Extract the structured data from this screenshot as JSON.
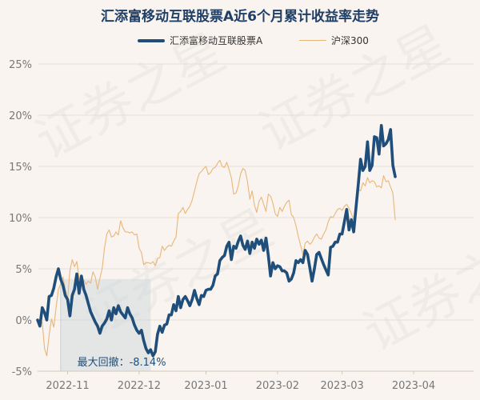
{
  "chart_data": {
    "type": "line",
    "title": "汇添富移动互联股票A近6个月累计收益率走势",
    "ylim": [
      -5,
      25
    ],
    "yticks": [
      -5,
      0,
      5,
      10,
      15,
      20,
      25
    ],
    "ytick_labels": [
      "-5%",
      "0%",
      "5%",
      "10%",
      "15%",
      "20%",
      "25%"
    ],
    "xticks": [
      {
        "label": "2022-11",
        "x": 13
      },
      {
        "label": "2022-12",
        "x": 44
      },
      {
        "label": "2023-01",
        "x": 73
      },
      {
        "label": "2023-02",
        "x": 104
      },
      {
        "label": "2023-03",
        "x": 132
      },
      {
        "label": "2023-04",
        "x": 163
      }
    ],
    "x_range": [
      0,
      189
    ],
    "grid": true,
    "legend_position": "top-center",
    "series": [
      {
        "name": "汇添富移动互联股票A",
        "color": "#1f4e7a",
        "points": [
          [
            0,
            0
          ],
          [
            1,
            -0.6
          ],
          [
            2,
            1.2
          ],
          [
            3,
            0.7
          ],
          [
            4,
            0.0
          ],
          [
            5,
            2.3
          ],
          [
            6,
            2.4
          ],
          [
            7,
            3.1
          ],
          [
            8,
            4.2
          ],
          [
            9,
            5.0
          ],
          [
            10,
            4.0
          ],
          [
            11,
            3.4
          ],
          [
            12,
            2.4
          ],
          [
            13,
            2.0
          ],
          [
            14,
            0.4
          ],
          [
            15,
            2.4
          ],
          [
            16,
            3.0
          ],
          [
            17,
            4.5
          ],
          [
            18,
            2.6
          ],
          [
            19,
            4.3
          ],
          [
            20,
            3.0
          ],
          [
            21,
            2.4
          ],
          [
            22,
            1.6
          ],
          [
            23,
            0.8
          ],
          [
            24,
            0.3
          ],
          [
            25,
            -0.2
          ],
          [
            26,
            -0.6
          ],
          [
            27,
            -1.3
          ],
          [
            28,
            -0.6
          ],
          [
            29,
            -0.3
          ],
          [
            30,
            0.1
          ],
          [
            31,
            0.9
          ],
          [
            32,
            0.0
          ],
          [
            33,
            1.2
          ],
          [
            34,
            0.6
          ],
          [
            35,
            1.4
          ],
          [
            36,
            0.8
          ],
          [
            37,
            0.5
          ],
          [
            38,
            0.2
          ],
          [
            39,
            1.2
          ],
          [
            40,
            0.6
          ],
          [
            41,
            0.2
          ],
          [
            42,
            -0.5
          ],
          [
            43,
            -1.0
          ],
          [
            44,
            -1.3
          ],
          [
            45,
            -1.0
          ],
          [
            46,
            -2.0
          ],
          [
            47,
            -2.8
          ],
          [
            48,
            -3.2
          ],
          [
            49,
            -2.9
          ],
          [
            50,
            -3.5
          ],
          [
            51,
            -3.1
          ],
          [
            52,
            -1.4
          ],
          [
            53,
            -0.6
          ],
          [
            54,
            -1.2
          ],
          [
            55,
            -0.5
          ],
          [
            56,
            -0.4
          ],
          [
            57,
            0.5
          ],
          [
            58,
            0.5
          ],
          [
            59,
            1.5
          ],
          [
            60,
            0.9
          ],
          [
            61,
            2.3
          ],
          [
            62,
            1.2
          ],
          [
            63,
            2.0
          ],
          [
            64,
            2.3
          ],
          [
            65,
            1.9
          ],
          [
            66,
            1.4
          ],
          [
            67,
            2.0
          ],
          [
            68,
            2.9
          ],
          [
            69,
            2.1
          ],
          [
            70,
            1.5
          ],
          [
            71,
            2.4
          ],
          [
            72,
            2.3
          ],
          [
            73,
            2.9
          ],
          [
            74,
            3.0
          ],
          [
            75,
            3.0
          ],
          [
            76,
            3.4
          ],
          [
            77,
            4.3
          ],
          [
            78,
            4.5
          ],
          [
            79,
            5.8
          ],
          [
            80,
            6.1
          ],
          [
            81,
            6.3
          ],
          [
            82,
            7.2
          ],
          [
            83,
            7.6
          ],
          [
            84,
            5.9
          ],
          [
            85,
            7.2
          ],
          [
            86,
            7.0
          ],
          [
            87,
            7.7
          ],
          [
            88,
            8.2
          ],
          [
            89,
            7.3
          ],
          [
            90,
            6.9
          ],
          [
            91,
            7.7
          ],
          [
            92,
            6.5
          ],
          [
            93,
            7.6
          ],
          [
            94,
            7.0
          ],
          [
            95,
            7.9
          ],
          [
            96,
            7.4
          ],
          [
            97,
            7.8
          ],
          [
            98,
            6.8
          ],
          [
            99,
            8.0
          ],
          [
            100,
            6.3
          ],
          [
            101,
            4.3
          ],
          [
            102,
            5.6
          ],
          [
            103,
            5.0
          ],
          [
            104,
            5.3
          ],
          [
            105,
            5.2
          ],
          [
            106,
            4.8
          ],
          [
            107,
            4.8
          ],
          [
            108,
            4.6
          ],
          [
            109,
            3.8
          ],
          [
            110,
            4.0
          ],
          [
            111,
            4.6
          ],
          [
            112,
            5.8
          ],
          [
            113,
            5.6
          ],
          [
            114,
            5.9
          ],
          [
            115,
            5.6
          ],
          [
            116,
            6.8
          ],
          [
            117,
            6.4
          ],
          [
            118,
            5.1
          ],
          [
            119,
            3.8
          ],
          [
            120,
            5.0
          ],
          [
            121,
            6.4
          ],
          [
            122,
            6.6
          ],
          [
            123,
            6.0
          ],
          [
            124,
            5.4
          ],
          [
            125,
            4.9
          ],
          [
            126,
            4.4
          ],
          [
            127,
            7.1
          ],
          [
            128,
            7.2
          ],
          [
            129,
            7.6
          ],
          [
            130,
            7.6
          ],
          [
            131,
            8.4
          ],
          [
            132,
            8.4
          ],
          [
            133,
            9.6
          ],
          [
            134,
            10.8
          ],
          [
            135,
            8.8
          ],
          [
            136,
            9.8
          ],
          [
            137,
            8.6
          ],
          [
            138,
            10.9
          ],
          [
            139,
            13.2
          ],
          [
            140,
            15.7
          ],
          [
            141,
            14.6
          ],
          [
            142,
            15.0
          ],
          [
            143,
            17.4
          ],
          [
            144,
            14.6
          ],
          [
            145,
            15.1
          ],
          [
            146,
            17.9
          ],
          [
            147,
            17.8
          ],
          [
            148,
            16.2
          ],
          [
            149,
            19.0
          ],
          [
            150,
            17.0
          ],
          [
            151,
            17.2
          ],
          [
            152,
            17.6
          ],
          [
            153,
            18.6
          ],
          [
            154,
            15.1
          ],
          [
            155,
            14.0
          ]
        ]
      },
      {
        "name": "沪深300",
        "color": "#e9b679",
        "points": [
          [
            0,
            0
          ],
          [
            1,
            -0.4
          ],
          [
            2,
            -0.2
          ],
          [
            3,
            -2.8
          ],
          [
            4,
            -3.5
          ],
          [
            5,
            -1.5
          ],
          [
            6,
            0.1
          ],
          [
            7,
            -0.7
          ],
          [
            8,
            1.2
          ],
          [
            9,
            3.0
          ],
          [
            10,
            3.5
          ],
          [
            11,
            4.2
          ],
          [
            12,
            3.0
          ],
          [
            13,
            2.0
          ],
          [
            14,
            4.8
          ],
          [
            15,
            5.9
          ],
          [
            16,
            5.2
          ],
          [
            17,
            5.7
          ],
          [
            18,
            4.0
          ],
          [
            19,
            3.7
          ],
          [
            20,
            3.9
          ],
          [
            21,
            3.5
          ],
          [
            22,
            3.8
          ],
          [
            23,
            3.6
          ],
          [
            24,
            4.7
          ],
          [
            25,
            4.2
          ],
          [
            26,
            3.0
          ],
          [
            27,
            4.1
          ],
          [
            28,
            5.0
          ],
          [
            29,
            7.0
          ],
          [
            30,
            8.4
          ],
          [
            31,
            8.8
          ],
          [
            32,
            8.1
          ],
          [
            33,
            8.2
          ],
          [
            34,
            8.6
          ],
          [
            35,
            8.3
          ],
          [
            36,
            9.7
          ],
          [
            37,
            9.0
          ],
          [
            38,
            8.6
          ],
          [
            39,
            8.6
          ],
          [
            40,
            8.5
          ],
          [
            41,
            8.6
          ],
          [
            42,
            8.3
          ],
          [
            43,
            8.4
          ],
          [
            44,
            7.0
          ],
          [
            45,
            6.6
          ],
          [
            46,
            5.4
          ],
          [
            47,
            5.6
          ],
          [
            48,
            5.6
          ],
          [
            49,
            5.5
          ],
          [
            50,
            5.7
          ],
          [
            51,
            5.3
          ],
          [
            52,
            6.0
          ],
          [
            53,
            6.1
          ],
          [
            54,
            7.2
          ],
          [
            55,
            6.8
          ],
          [
            56,
            7.1
          ],
          [
            57,
            7.3
          ],
          [
            58,
            7.2
          ],
          [
            59,
            7.7
          ],
          [
            60,
            8.1
          ],
          [
            61,
            10.4
          ],
          [
            62,
            10.6
          ],
          [
            63,
            11.0
          ],
          [
            64,
            10.4
          ],
          [
            65,
            10.8
          ],
          [
            66,
            11.1
          ],
          [
            67,
            11.7
          ],
          [
            68,
            12.6
          ],
          [
            69,
            13.5
          ],
          [
            70,
            14.3
          ],
          [
            71,
            14.5
          ],
          [
            72,
            14.8
          ],
          [
            73,
            15.0
          ],
          [
            74,
            14.2
          ],
          [
            75,
            14.4
          ],
          [
            76,
            14.8
          ],
          [
            77,
            14.9
          ],
          [
            78,
            15.3
          ],
          [
            79,
            15.6
          ],
          [
            80,
            15.0
          ],
          [
            81,
            14.9
          ],
          [
            82,
            15.4
          ],
          [
            83,
            14.7
          ],
          [
            84,
            13.9
          ],
          [
            85,
            12.3
          ],
          [
            86,
            12.4
          ],
          [
            87,
            13.1
          ],
          [
            88,
            14.3
          ],
          [
            89,
            14.8
          ],
          [
            90,
            14.6
          ],
          [
            91,
            13.5
          ],
          [
            92,
            11.8
          ],
          [
            93,
            12.6
          ],
          [
            94,
            11.2
          ],
          [
            95,
            10.5
          ],
          [
            96,
            11.6
          ],
          [
            97,
            12.0
          ],
          [
            98,
            11.3
          ],
          [
            99,
            10.6
          ],
          [
            100,
            12.3
          ],
          [
            101,
            12.1
          ],
          [
            102,
            11.4
          ],
          [
            103,
            10.4
          ],
          [
            104,
            10.1
          ],
          [
            105,
            11.0
          ],
          [
            106,
            10.6
          ],
          [
            107,
            11.1
          ],
          [
            108,
            11.5
          ],
          [
            109,
            11.7
          ],
          [
            110,
            10.3
          ],
          [
            111,
            10.0
          ],
          [
            112,
            9.2
          ],
          [
            113,
            8.2
          ],
          [
            114,
            7.3
          ],
          [
            115,
            6.4
          ],
          [
            116,
            7.5
          ],
          [
            117,
            7.7
          ],
          [
            118,
            7.4
          ],
          [
            119,
            7.6
          ],
          [
            120,
            8.1
          ],
          [
            121,
            8.4
          ],
          [
            122,
            8.0
          ],
          [
            123,
            7.9
          ],
          [
            124,
            8.4
          ],
          [
            125,
            8.8
          ],
          [
            126,
            9.6
          ],
          [
            127,
            10.1
          ],
          [
            128,
            10.0
          ],
          [
            129,
            10.4
          ],
          [
            130,
            10.8
          ],
          [
            131,
            10.9
          ],
          [
            132,
            10.7
          ],
          [
            133,
            11.1
          ],
          [
            134,
            11.3
          ],
          [
            135,
            10.9
          ],
          [
            136,
            10.4
          ],
          [
            137,
            9.8
          ],
          [
            138,
            10.9
          ],
          [
            139,
            12.8
          ],
          [
            140,
            12.6
          ],
          [
            141,
            13.4
          ],
          [
            142,
            13.1
          ],
          [
            143,
            13.9
          ],
          [
            144,
            13.4
          ],
          [
            145,
            13.6
          ],
          [
            146,
            13.5
          ],
          [
            147,
            13.0
          ],
          [
            148,
            13.1
          ],
          [
            149,
            12.9
          ],
          [
            150,
            14.1
          ],
          [
            151,
            13.5
          ],
          [
            152,
            13.6
          ],
          [
            153,
            13.0
          ],
          [
            154,
            12.4
          ],
          [
            155,
            9.8
          ]
        ]
      }
    ],
    "max_drawdown": {
      "label": "最大回撤：-8.14%",
      "x_start": 10,
      "x_end": 49,
      "y_low": -5
    },
    "watermark": "证券之星"
  }
}
